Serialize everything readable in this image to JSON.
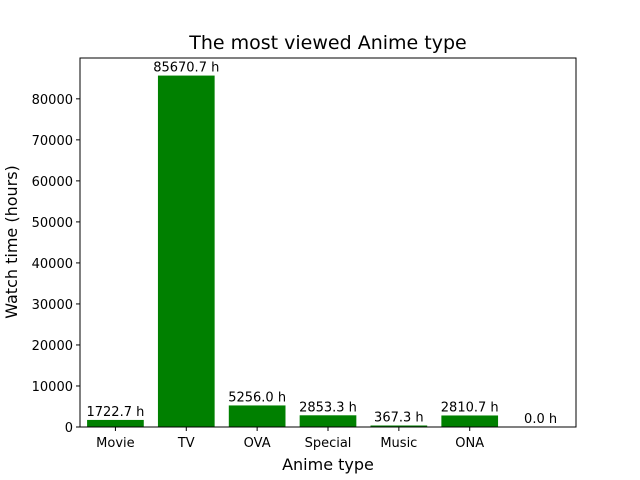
{
  "chart_data": {
    "type": "bar",
    "title": "The most viewed Anime type",
    "xlabel": "Anime type",
    "ylabel": "Watch time (hours)",
    "categories": [
      "Movie",
      "TV",
      "OVA",
      "Special",
      "Music",
      "ONA",
      ""
    ],
    "values": [
      1722.7,
      85670.7,
      5256.0,
      2853.3,
      367.3,
      2810.7,
      0.0
    ],
    "data_labels": [
      "1722.7 h",
      "85670.7 h",
      "5256.0 h",
      "2853.3 h",
      "367.3 h",
      "2810.7 h",
      "0.0 h"
    ],
    "ylim": [
      0,
      89954
    ],
    "yticks": [
      0,
      10000,
      20000,
      30000,
      40000,
      50000,
      60000,
      70000,
      80000
    ],
    "ytick_labels": [
      "0",
      "10000",
      "20000",
      "30000",
      "40000",
      "50000",
      "60000",
      "70000",
      "80000"
    ],
    "bar_color": "#008000",
    "grid": false,
    "legend": "none"
  }
}
